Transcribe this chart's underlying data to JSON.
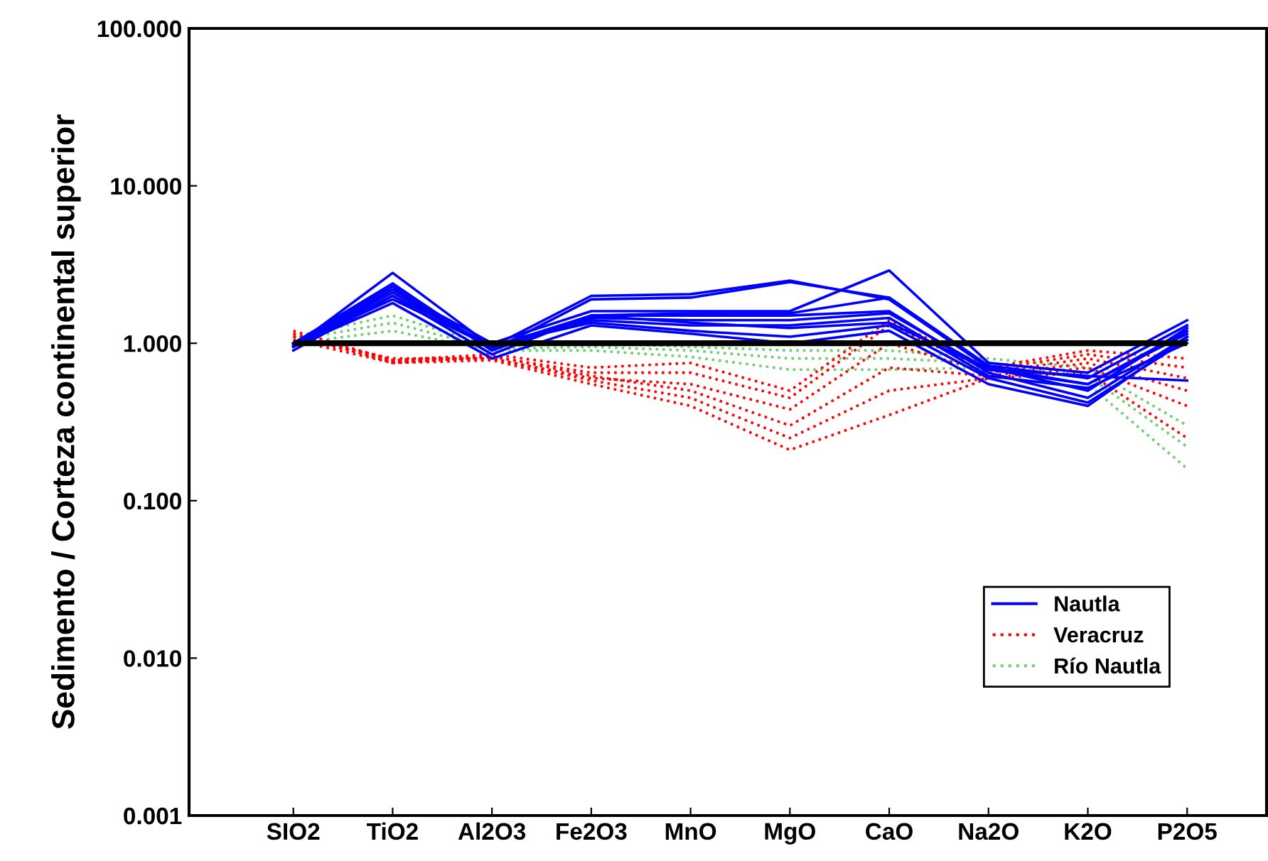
{
  "chart_data": {
    "type": "line",
    "ylabel": "Sedimento / Corteza continental superior",
    "log": "y",
    "ylim": [
      0.001,
      100
    ],
    "yticks": [
      {
        "value": 0.001,
        "label": "0.001"
      },
      {
        "value": 0.01,
        "label": "0.010"
      },
      {
        "value": 0.1,
        "label": "0.100"
      },
      {
        "value": 1,
        "label": "1.000"
      },
      {
        "value": 10,
        "label": "10.000"
      },
      {
        "value": 100,
        "label": "100.000"
      }
    ],
    "categories": [
      "SIO2",
      "TiO2",
      "Al2O3",
      "Fe2O3",
      "MnO",
      "MgO",
      "CaO",
      "Na2O",
      "K2O",
      "P2O5"
    ],
    "legend": "bottom right",
    "grid": false,
    "series": [
      {
        "name": "Río Nautla",
        "color": "#6fcf6f",
        "line_style": "dotted",
        "values": [
          1.1,
          1.5,
          0.95,
          1.0,
          0.95,
          0.9,
          0.9,
          0.8,
          0.7,
          0.3
        ]
      },
      {
        "color": "#6fcf6f",
        "line_style": "dotted",
        "values": [
          1.05,
          1.35,
          0.92,
          0.95,
          0.9,
          0.8,
          0.8,
          0.75,
          0.62,
          0.22
        ]
      },
      {
        "color": "#6fcf6f",
        "line_style": "dotted",
        "values": [
          1.0,
          1.2,
          0.9,
          0.9,
          0.82,
          0.68,
          0.68,
          0.7,
          0.55,
          0.16
        ]
      },
      {
        "name": "Veracruz",
        "color": "#ff0000",
        "line_style": "dotted",
        "values": [
          1.2,
          0.78,
          0.85,
          0.7,
          0.75,
          0.5,
          1.4,
          0.7,
          0.9,
          0.8
        ]
      },
      {
        "color": "#ff0000",
        "line_style": "dotted",
        "values": [
          1.15,
          0.75,
          0.82,
          0.65,
          0.65,
          0.45,
          1.3,
          0.68,
          0.85,
          0.7
        ]
      },
      {
        "color": "#ff0000",
        "line_style": "dotted",
        "values": [
          1.1,
          0.8,
          0.8,
          0.6,
          0.55,
          0.38,
          1.0,
          0.65,
          0.8,
          0.6
        ]
      },
      {
        "color": "#ff0000",
        "line_style": "dotted",
        "values": [
          1.15,
          0.76,
          0.83,
          0.62,
          0.5,
          0.3,
          0.7,
          0.62,
          0.75,
          0.5
        ]
      },
      {
        "color": "#ff0000",
        "line_style": "dotted",
        "values": [
          1.1,
          0.77,
          0.8,
          0.58,
          0.45,
          0.25,
          0.5,
          0.6,
          0.7,
          0.4
        ]
      },
      {
        "color": "#ff0000",
        "line_style": "dotted",
        "values": [
          1.05,
          0.75,
          0.78,
          0.55,
          0.4,
          0.21,
          0.35,
          0.6,
          0.65,
          0.25
        ]
      },
      {
        "name": "Nautla",
        "color": "#0000ff",
        "line_style": "solid",
        "values": [
          0.95,
          2.8,
          0.95,
          2.0,
          2.05,
          2.5,
          1.9,
          0.7,
          0.55,
          1.2
        ]
      },
      {
        "color": "#0000ff",
        "line_style": "solid",
        "values": [
          1.0,
          2.3,
          0.9,
          1.9,
          1.95,
          2.45,
          1.95,
          0.72,
          0.6,
          1.3
        ]
      },
      {
        "color": "#0000ff",
        "line_style": "solid",
        "values": [
          0.97,
          2.2,
          1.0,
          1.6,
          1.6,
          1.6,
          2.9,
          0.75,
          0.65,
          1.4
        ]
      },
      {
        "color": "#0000ff",
        "line_style": "solid",
        "values": [
          1.0,
          2.1,
          0.95,
          1.5,
          1.55,
          1.55,
          1.95,
          0.7,
          0.5,
          1.25
        ]
      },
      {
        "color": "#0000ff",
        "line_style": "solid",
        "values": [
          0.9,
          2.0,
          0.85,
          1.5,
          1.5,
          1.5,
          1.6,
          0.65,
          0.45,
          1.1
        ]
      },
      {
        "color": "#0000ff",
        "line_style": "solid",
        "values": [
          1.0,
          2.2,
          0.92,
          1.45,
          1.4,
          1.4,
          1.55,
          0.68,
          0.55,
          1.15
        ]
      },
      {
        "color": "#0000ff",
        "line_style": "solid",
        "values": [
          0.98,
          1.9,
          0.95,
          1.4,
          1.3,
          1.3,
          1.45,
          0.62,
          0.52,
          1.0
        ]
      },
      {
        "color": "#0000ff",
        "line_style": "solid",
        "values": [
          1.0,
          2.0,
          0.97,
          1.35,
          1.2,
          1.1,
          1.3,
          0.6,
          0.42,
          1.05
        ]
      },
      {
        "color": "#0000ff",
        "line_style": "solid",
        "values": [
          0.95,
          1.8,
          0.8,
          1.3,
          1.15,
          1.0,
          1.2,
          0.55,
          0.4,
          1.1
        ]
      },
      {
        "color": "#0000ff",
        "line_style": "solid",
        "values": [
          1.0,
          2.4,
          0.9,
          1.5,
          1.35,
          1.25,
          1.35,
          0.68,
          0.62,
          0.58
        ]
      }
    ],
    "ref_lines": [
      {
        "axis": "y",
        "value": 1,
        "color": "#000000",
        "line_style": "solid"
      }
    ]
  }
}
